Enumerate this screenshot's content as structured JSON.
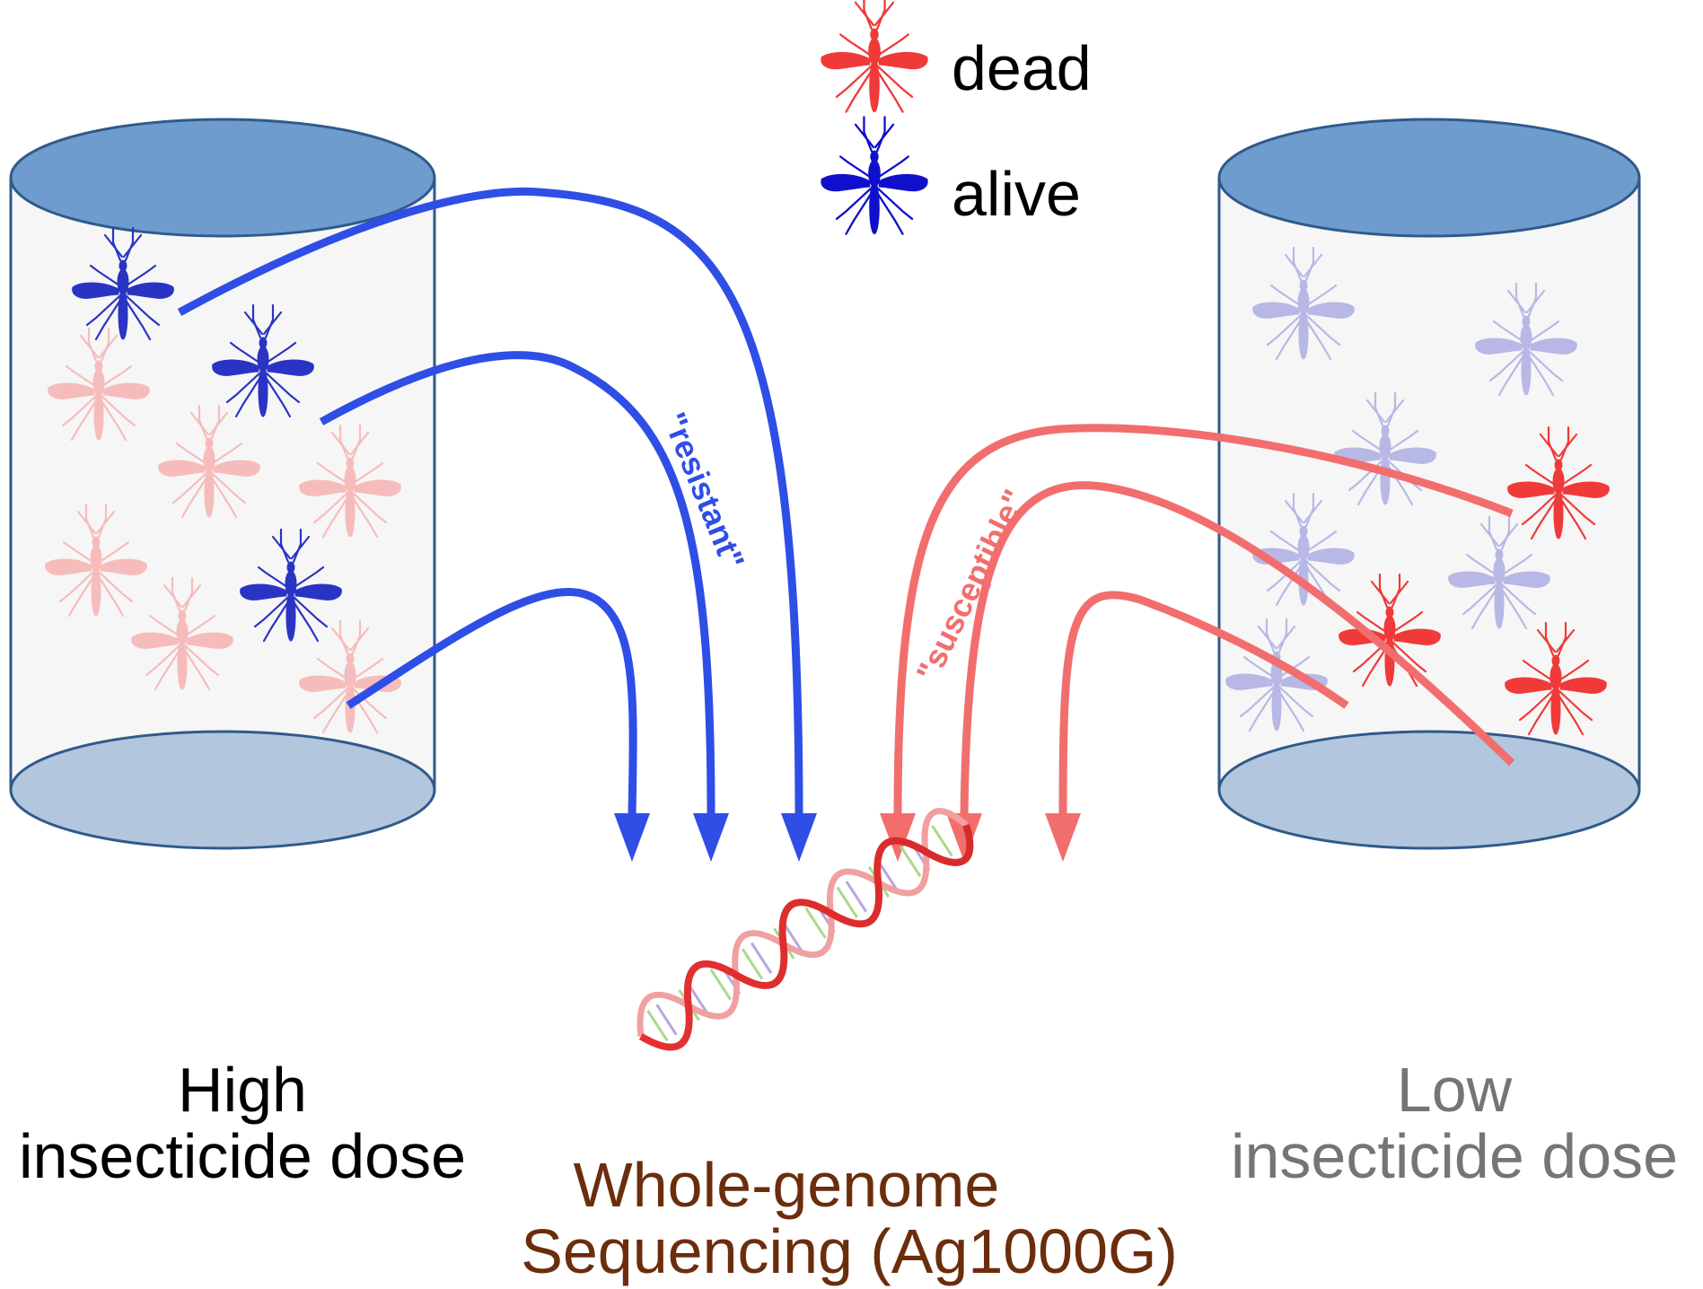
{
  "legend": {
    "dead_label": "dead",
    "alive_label": "alive"
  },
  "arrow_labels": {
    "resistant": "\"resistant\"",
    "susceptible": "\"susceptible\""
  },
  "left_tube": {
    "line1": "High",
    "line2": "insecticide dose"
  },
  "right_tube": {
    "line1": "Low",
    "line2": "insecticide dose"
  },
  "center": {
    "line1": "Whole-genome",
    "line2": "Sequencing (Ag1000G)"
  },
  "colors": {
    "dead": "#f03a3a",
    "alive": "#2a34c4",
    "dead_faded": "#f6bcbc",
    "alive_faded": "#b8b8e6",
    "resistant_arrow": "#2f4ee6",
    "susceptible_arrow": "#f26e6e",
    "tube_fill": "#f6f6f6",
    "tube_stroke": "#2f5a8a",
    "tube_top": "#6f9cce",
    "tube_bottom": "#b2c6de",
    "high_text": "#000000",
    "low_text": "#757575",
    "wgs_text": "#6b2d0c"
  }
}
